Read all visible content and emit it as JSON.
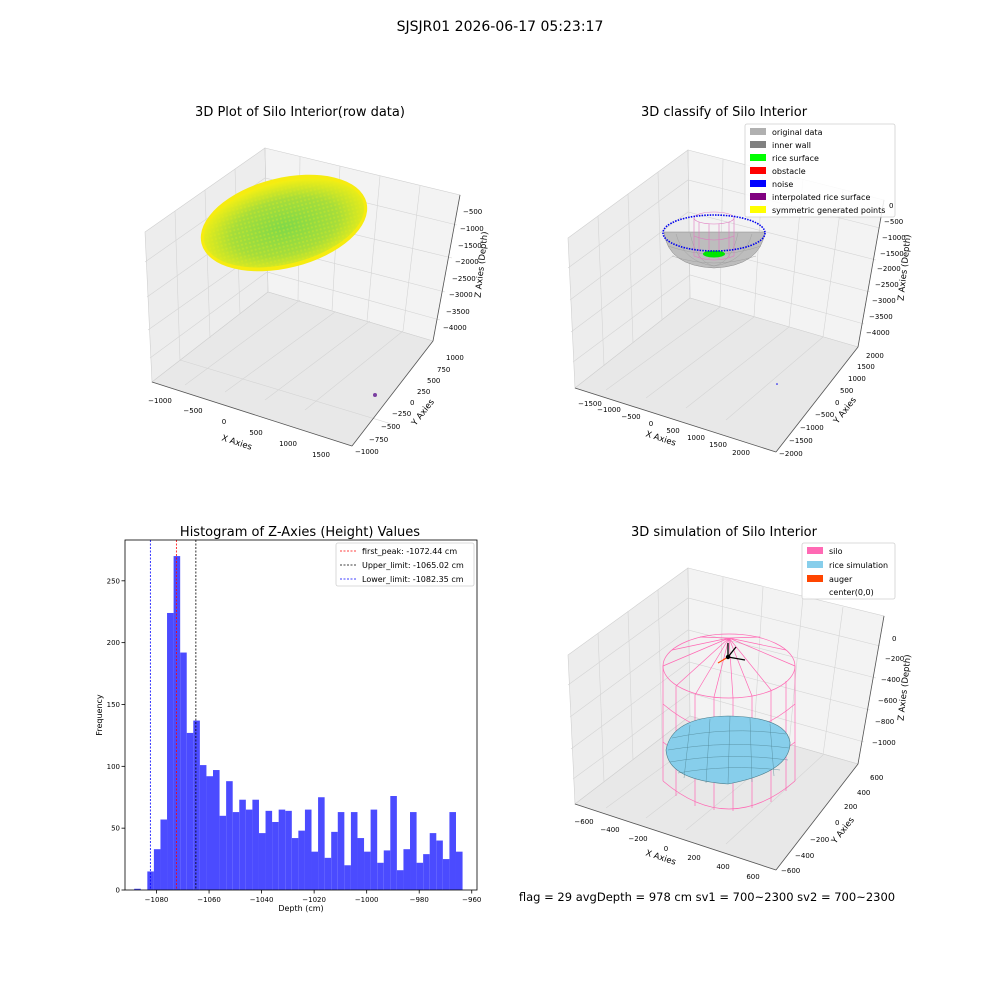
{
  "suptitle": "SJSJR01 2026-06-17 05:23:17",
  "status_line": "flag = 29  avgDepth = 978 cm  sv1 = 700~2300  sv2 = 700~2300",
  "colors": {
    "hist_bar": "#4b4bff",
    "first_peak": "#ff0000",
    "upper_limit": "#000000",
    "lower_limit": "#0000ff",
    "silo": "#ff69b4",
    "rice_sim": "#87ceeb",
    "auger": "#ff4500",
    "pane": "#f2f2f2",
    "grid": "#d9d9d9"
  },
  "chart_data": [
    {
      "type": "scatter",
      "title": "3D Plot of Silo Interior(row data)",
      "xlabel": "X Axies",
      "ylabel": "Y Axies",
      "zlabel": "Z Axies (Depth)",
      "x_ticks": [
        "−1000",
        "−500",
        "0",
        "500",
        "1000",
        "1500"
      ],
      "y_ticks": [
        "−1000",
        "−750",
        "−500",
        "−250",
        "0",
        "250",
        "500",
        "750",
        "1000"
      ],
      "z_ticks": [
        "−500",
        "−1000",
        "−1500",
        "−2000",
        "−2500",
        "−3000",
        "−3500",
        "−4000"
      ]
    },
    {
      "type": "scatter",
      "title": "3D classify of Silo Interior",
      "xlabel": "X Axies",
      "ylabel": "Y Axies",
      "zlabel": "Z Axies (Depth)",
      "x_ticks": [
        "−1500",
        "−1000",
        "−500",
        "0",
        "500",
        "1000",
        "1500",
        "2000"
      ],
      "y_ticks": [
        "−2000",
        "−1500",
        "−1000",
        "−500",
        "0",
        "500",
        "1000",
        "1500",
        "2000"
      ],
      "z_ticks": [
        "0",
        "−500",
        "−1000",
        "−1500",
        "−2000",
        "−2500",
        "−3000",
        "−3500",
        "−4000"
      ],
      "legend": [
        {
          "label": "original data",
          "color": "#b0b0b0"
        },
        {
          "label": "inner wall",
          "color": "#808080"
        },
        {
          "label": "rice surface",
          "color": "#00ff00"
        },
        {
          "label": "obstacle",
          "color": "#ff0000"
        },
        {
          "label": "noise",
          "color": "#0000ff"
        },
        {
          "label": "interpolated rice surface",
          "color": "#800080"
        },
        {
          "label": "symmetric generated points",
          "color": "#ffff00"
        }
      ]
    },
    {
      "type": "bar",
      "title": "Histogram of Z-Axies (Height) Values",
      "xlabel": "Depth (cm)",
      "ylabel": "Frequency",
      "xlim": [
        -1092,
        -958
      ],
      "ylim": [
        0,
        283
      ],
      "x_ticks": [
        -1080,
        -1060,
        -1040,
        -1020,
        -1000,
        -980,
        -960
      ],
      "x_tick_labels": [
        "−1080",
        "−1060",
        "−1040",
        "−1020",
        "−1000",
        "−980",
        "−960"
      ],
      "y_ticks": [
        0,
        50,
        100,
        150,
        200,
        250
      ],
      "bin_start": -1088.5,
      "bin_width": 2.5,
      "values": [
        1,
        0,
        15,
        33,
        57,
        224,
        270,
        192,
        127,
        137,
        101,
        92,
        97,
        60,
        88,
        63,
        73,
        65,
        73,
        46,
        64,
        55,
        65,
        64,
        42,
        48,
        65,
        31,
        75,
        26,
        47,
        63,
        20,
        63,
        42,
        31,
        65,
        22,
        32,
        76,
        16,
        33,
        63,
        22,
        29,
        46,
        40,
        25,
        63,
        31
      ],
      "vlines": [
        {
          "label": "first_peak: -1072.44 cm",
          "x": -1072.44,
          "color": "#ff0000"
        },
        {
          "label": "Upper_limit: -1065.02 cm",
          "x": -1065.02,
          "color": "#000000"
        },
        {
          "label": "Lower_limit: -1082.35 cm",
          "x": -1082.35,
          "color": "#0000ff"
        }
      ]
    },
    {
      "type": "scatter",
      "title": "3D simulation of Silo Interior",
      "xlabel": "X Axies",
      "ylabel": "Y Axies",
      "zlabel": "Z Axies (Depth)",
      "x_ticks": [
        "−600",
        "−400",
        "−200",
        "0",
        "200",
        "400",
        "600"
      ],
      "y_ticks": [
        "−600",
        "−400",
        "−200",
        "0",
        "200",
        "400",
        "600"
      ],
      "z_ticks": [
        "0",
        "−200",
        "−400",
        "−600",
        "−800",
        "−1000"
      ],
      "legend": [
        {
          "label": "silo",
          "color": "#ff69b4"
        },
        {
          "label": "rice simulation",
          "color": "#87ceeb"
        },
        {
          "label": "auger",
          "color": "#ff4500"
        },
        {
          "label": "center(0,0)",
          "color": ""
        }
      ]
    }
  ]
}
